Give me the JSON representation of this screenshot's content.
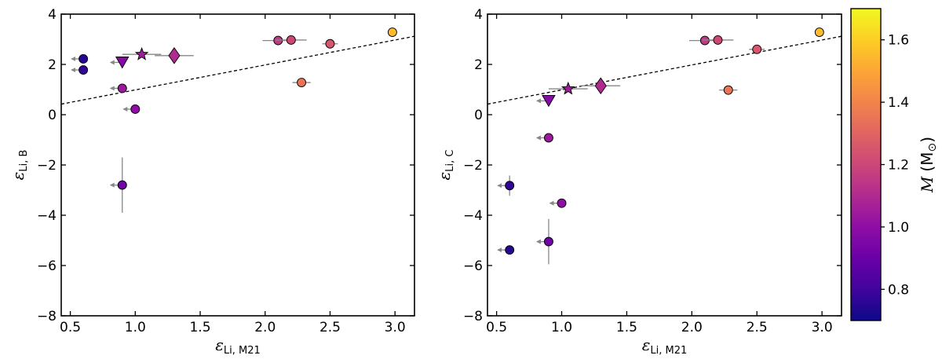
{
  "figure": {
    "colorbar": {
      "label_symbol": "M",
      "label_unit": "(M",
      "label_unit_sub": "⊙",
      "label_unit_close": ")",
      "range": [
        0.7,
        1.7
      ],
      "ticks": [
        "0.8",
        "1.0",
        "1.2",
        "1.4",
        "1.6"
      ],
      "colormap": "plasma"
    }
  },
  "chart_data": [
    {
      "type": "scatter",
      "title": "",
      "xlabel": "ε",
      "xlabel_sub": "Li, M21",
      "ylabel": "ε",
      "ylabel_sub": "Li, B",
      "xlim": [
        0.43,
        3.15
      ],
      "ylim": [
        -8,
        4
      ],
      "x_ticks": [
        "0.5",
        "1.0",
        "1.5",
        "2.0",
        "2.5",
        "3.0"
      ],
      "y_ticks": [
        "4",
        "2",
        "0",
        "−2",
        "−4",
        "−6",
        "−8"
      ],
      "grid": false,
      "reference_line": {
        "style": "dashed",
        "points": [
          [
            0.43,
            0.42
          ],
          [
            3.15,
            3.12
          ]
        ]
      },
      "points": [
        {
          "x": 0.6,
          "y": 2.22,
          "marker": "circle",
          "mass": 0.75,
          "upper_limit": true
        },
        {
          "x": 0.6,
          "y": 1.78,
          "marker": "circle",
          "mass": 0.77,
          "upper_limit": true
        },
        {
          "x": 0.9,
          "y": 2.08,
          "marker": "triangle-down",
          "mass": 0.98,
          "upper_limit": true
        },
        {
          "x": 1.05,
          "y": 2.4,
          "marker": "star",
          "mass": 1.05,
          "xerr": 0.15
        },
        {
          "x": 1.3,
          "y": 2.35,
          "marker": "diamond",
          "mass": 1.1,
          "xerr": 0.15
        },
        {
          "x": 0.9,
          "y": 1.05,
          "marker": "circle",
          "mass": 1.04,
          "upper_limit": true
        },
        {
          "x": 1.0,
          "y": 0.22,
          "marker": "circle",
          "mass": 1.0,
          "upper_limit": true
        },
        {
          "x": 0.9,
          "y": -2.8,
          "marker": "circle",
          "mass": 0.92,
          "upper_limit": true,
          "yerr": 1.1
        },
        {
          "x": 2.1,
          "y": 2.95,
          "marker": "circle",
          "mass": 1.15,
          "xerr": 0.12
        },
        {
          "x": 2.2,
          "y": 2.97,
          "marker": "circle",
          "mass": 1.2,
          "xerr": 0.12
        },
        {
          "x": 2.5,
          "y": 2.82,
          "marker": "circle",
          "mass": 1.25,
          "xerr": 0.06
        },
        {
          "x": 2.28,
          "y": 1.28,
          "marker": "circle",
          "mass": 1.35,
          "xerr": 0.07
        },
        {
          "x": 2.98,
          "y": 3.28,
          "marker": "circle",
          "mass": 1.55
        }
      ]
    },
    {
      "type": "scatter",
      "title": "",
      "xlabel": "ε",
      "xlabel_sub": "Li, M21",
      "ylabel": "ε",
      "ylabel_sub": "Li, C",
      "xlim": [
        0.43,
        3.15
      ],
      "ylim": [
        -8,
        4
      ],
      "x_ticks": [
        "0.5",
        "1.0",
        "1.5",
        "2.0",
        "2.5",
        "3.0"
      ],
      "y_ticks": [
        "4",
        "2",
        "0",
        "−2",
        "−4",
        "−6",
        "−8"
      ],
      "grid": false,
      "reference_line": {
        "style": "dashed",
        "points": [
          [
            0.43,
            0.42
          ],
          [
            3.15,
            3.12
          ]
        ]
      },
      "points": [
        {
          "x": 0.9,
          "y": 0.55,
          "marker": "triangle-down",
          "mass": 0.98,
          "upper_limit": true
        },
        {
          "x": 1.05,
          "y": 1.03,
          "marker": "star",
          "mass": 1.05,
          "xerr": 0.15
        },
        {
          "x": 1.3,
          "y": 1.15,
          "marker": "diamond",
          "mass": 1.1,
          "xerr": 0.15
        },
        {
          "x": 0.9,
          "y": -0.92,
          "marker": "circle",
          "mass": 1.04,
          "upper_limit": true
        },
        {
          "x": 0.6,
          "y": -2.82,
          "marker": "circle",
          "mass": 0.77,
          "upper_limit": true,
          "yerr": 0.4
        },
        {
          "x": 1.0,
          "y": -3.52,
          "marker": "circle",
          "mass": 1.0,
          "upper_limit": true,
          "yerr": 0.15
        },
        {
          "x": 0.9,
          "y": -5.05,
          "marker": "circle",
          "mass": 0.92,
          "upper_limit": true,
          "yerr": 0.9
        },
        {
          "x": 0.6,
          "y": -5.38,
          "marker": "circle",
          "mass": 0.75,
          "upper_limit": true
        },
        {
          "x": 2.1,
          "y": 2.95,
          "marker": "circle",
          "mass": 1.15,
          "xerr": 0.12
        },
        {
          "x": 2.2,
          "y": 2.97,
          "marker": "circle",
          "mass": 1.2,
          "xerr": 0.12
        },
        {
          "x": 2.5,
          "y": 2.6,
          "marker": "circle",
          "mass": 1.25,
          "xerr": 0.06
        },
        {
          "x": 2.28,
          "y": 0.98,
          "marker": "circle",
          "mass": 1.35,
          "xerr": 0.07
        },
        {
          "x": 2.98,
          "y": 3.28,
          "marker": "circle",
          "mass": 1.55
        }
      ]
    }
  ]
}
